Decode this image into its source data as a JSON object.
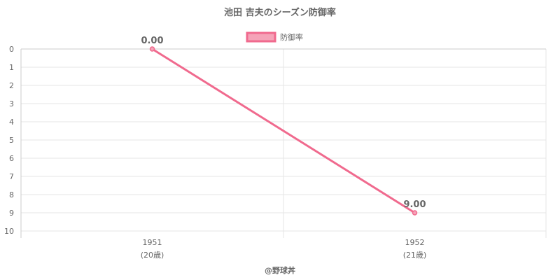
{
  "chart_data": {
    "type": "line",
    "title": "池田 吉夫のシーズン防御率",
    "x": [
      "1951",
      "1952"
    ],
    "x_sublabels": [
      "(20歳)",
      "(21歳)"
    ],
    "series": [
      {
        "name": "防御率",
        "values": [
          0.0,
          9.0
        ],
        "data_labels": [
          "0.00",
          "9.00"
        ]
      }
    ],
    "y_ticks": [
      "0",
      "1",
      "2",
      "3",
      "4",
      "5",
      "6",
      "7",
      "8",
      "9",
      "10"
    ],
    "ylim": [
      0,
      10
    ],
    "y_reversed": true,
    "grid": true,
    "legend_position": "top",
    "line_color": "#f06a8e",
    "legend_fill_color": "#f5a3b8",
    "grid_color": "#e6e6e6",
    "axis_color": "#cccccc",
    "text_color": "#666666"
  },
  "credit": "@野球丼"
}
